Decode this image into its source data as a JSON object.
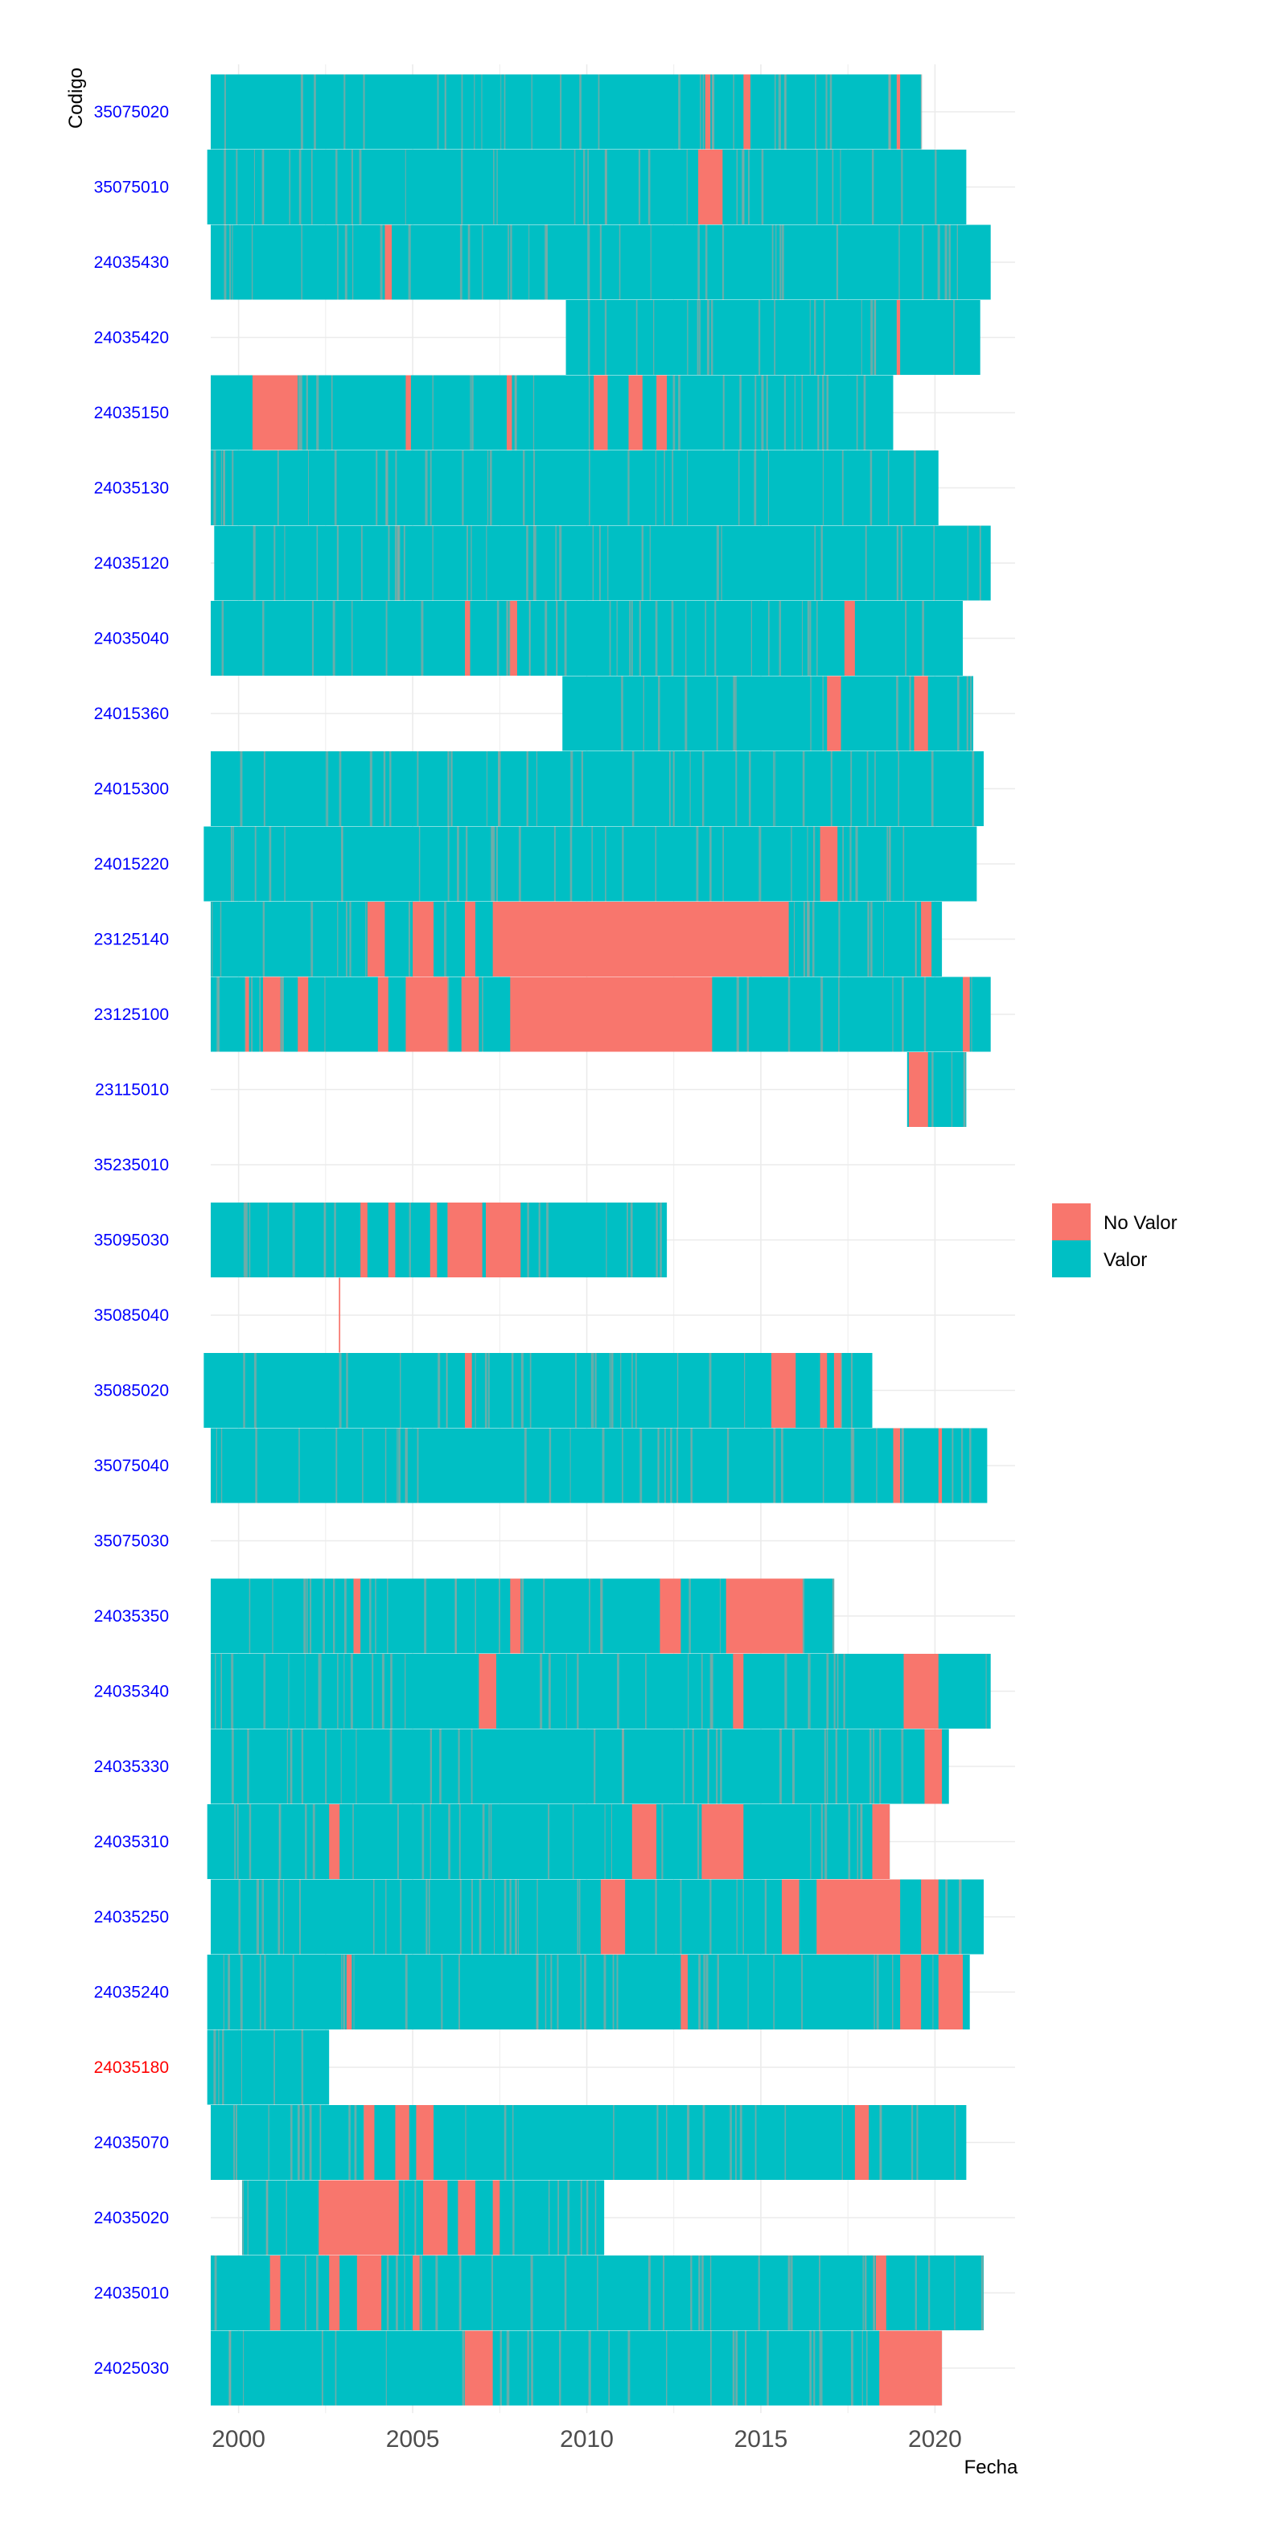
{
  "chart_data": {
    "type": "heatmap",
    "xlabel": "Fecha",
    "ylabel": "Codigo",
    "x_ticks": [
      2000,
      2005,
      2010,
      2015,
      2020
    ],
    "xlim": [
      1999.2,
      2022.3
    ],
    "grid": true,
    "legend_position": "right",
    "legend": [
      {
        "label": "No Valor",
        "color": "#F8766D"
      },
      {
        "label": "Valor",
        "color": "#00BFC4"
      }
    ],
    "colors": {
      "valor": "#00BFC4",
      "no_valor": "#F8766D",
      "tick_default": "#0000FF",
      "tick_highlight": "#FF0000"
    },
    "series": [
      {
        "code": "35075020",
        "tick_color": "#0000FF",
        "start": 1999.2,
        "end": 2019.6,
        "gaps": [
          [
            2013.4,
            2013.55
          ],
          [
            2014.5,
            2014.7
          ],
          [
            2018.9,
            2019.0
          ]
        ]
      },
      {
        "code": "35075010",
        "tick_color": "#0000FF",
        "start": 1999.1,
        "end": 2020.9,
        "gaps": [
          [
            2013.2,
            2013.9
          ]
        ]
      },
      {
        "code": "24035430",
        "tick_color": "#0000FF",
        "start": 1999.2,
        "end": 2021.6,
        "gaps": [
          [
            2004.2,
            2004.4
          ]
        ]
      },
      {
        "code": "24035420",
        "tick_color": "#0000FF",
        "start": 2009.4,
        "end": 2021.3,
        "gaps": [
          [
            2018.9,
            2019.0
          ]
        ]
      },
      {
        "code": "24035150",
        "tick_color": "#0000FF",
        "start": 1999.2,
        "end": 2018.8,
        "gaps": [
          [
            2000.4,
            2001.7
          ],
          [
            2004.8,
            2004.95
          ],
          [
            2007.7,
            2007.85
          ],
          [
            2010.2,
            2010.6
          ],
          [
            2011.2,
            2011.6
          ],
          [
            2012.0,
            2012.3
          ]
        ]
      },
      {
        "code": "24035130",
        "tick_color": "#0000FF",
        "start": 1999.2,
        "end": 2020.1,
        "gaps": []
      },
      {
        "code": "24035120",
        "tick_color": "#0000FF",
        "start": 1999.3,
        "end": 2021.6,
        "gaps": []
      },
      {
        "code": "24035040",
        "tick_color": "#0000FF",
        "start": 1999.2,
        "end": 2020.8,
        "gaps": [
          [
            2006.5,
            2006.65
          ],
          [
            2007.8,
            2008.0
          ],
          [
            2017.4,
            2017.7
          ]
        ]
      },
      {
        "code": "24015360",
        "tick_color": "#0000FF",
        "start": 2009.3,
        "end": 2021.1,
        "gaps": [
          [
            2016.9,
            2017.3
          ],
          [
            2019.4,
            2019.8
          ]
        ]
      },
      {
        "code": "24015300",
        "tick_color": "#0000FF",
        "start": 1999.2,
        "end": 2021.4,
        "gaps": []
      },
      {
        "code": "24015220",
        "tick_color": "#0000FF",
        "start": 1999.0,
        "end": 2021.2,
        "gaps": [
          [
            2016.7,
            2017.2
          ]
        ]
      },
      {
        "code": "23125140",
        "tick_color": "#0000FF",
        "start": 1999.2,
        "end": 2020.2,
        "gaps": [
          [
            2003.7,
            2004.2
          ],
          [
            2005.0,
            2005.6
          ],
          [
            2006.5,
            2006.8
          ],
          [
            2007.3,
            2015.8
          ],
          [
            2019.6,
            2019.9
          ]
        ]
      },
      {
        "code": "23125100",
        "tick_color": "#0000FF",
        "start": 1999.2,
        "end": 2021.6,
        "gaps": [
          [
            2000.2,
            2000.3
          ],
          [
            2000.7,
            2001.2
          ],
          [
            2001.7,
            2002.0
          ],
          [
            2004.0,
            2004.3
          ],
          [
            2004.8,
            2006.0
          ],
          [
            2006.4,
            2006.9
          ],
          [
            2007.8,
            2013.6
          ],
          [
            2020.8,
            2021.0
          ]
        ]
      },
      {
        "code": "23115010",
        "tick_color": "#0000FF",
        "start": 2019.2,
        "end": 2020.9,
        "gaps": [
          [
            2019.25,
            2019.8
          ]
        ]
      },
      {
        "code": "35235010",
        "tick_color": "#0000FF",
        "start": null,
        "end": null,
        "gaps": []
      },
      {
        "code": "35095030",
        "tick_color": "#0000FF",
        "start": 1999.2,
        "end": 2012.3,
        "gaps": [
          [
            2003.5,
            2003.7
          ],
          [
            2004.3,
            2004.5
          ],
          [
            2005.5,
            2005.7
          ],
          [
            2006.0,
            2007.0
          ],
          [
            2007.1,
            2008.1
          ]
        ]
      },
      {
        "code": "35085040",
        "tick_color": "#0000FF",
        "start": null,
        "end": null,
        "gaps": [
          [
            2002.88,
            2002.92
          ]
        ]
      },
      {
        "code": "35085020",
        "tick_color": "#0000FF",
        "start": 1999.0,
        "end": 2018.2,
        "gaps": [
          [
            2006.5,
            2006.7
          ],
          [
            2015.3,
            2016.0
          ],
          [
            2016.7,
            2016.9
          ],
          [
            2017.1,
            2017.3
          ]
        ]
      },
      {
        "code": "35075040",
        "tick_color": "#0000FF",
        "start": 1999.2,
        "end": 2021.5,
        "gaps": [
          [
            2018.8,
            2019.0
          ],
          [
            2020.1,
            2020.2
          ]
        ]
      },
      {
        "code": "35075030",
        "tick_color": "#0000FF",
        "start": null,
        "end": null,
        "gaps": []
      },
      {
        "code": "24035350",
        "tick_color": "#0000FF",
        "start": 1999.2,
        "end": 2017.1,
        "gaps": [
          [
            2003.3,
            2003.5
          ],
          [
            2007.8,
            2008.1
          ],
          [
            2012.1,
            2012.7
          ],
          [
            2014.0,
            2016.2
          ]
        ]
      },
      {
        "code": "24035340",
        "tick_color": "#0000FF",
        "start": 1999.2,
        "end": 2021.6,
        "gaps": [
          [
            2006.9,
            2007.4
          ],
          [
            2014.2,
            2014.5
          ],
          [
            2019.1,
            2020.1
          ]
        ]
      },
      {
        "code": "24035330",
        "tick_color": "#0000FF",
        "start": 1999.2,
        "end": 2020.4,
        "gaps": [
          [
            2019.7,
            2020.2
          ]
        ]
      },
      {
        "code": "24035310",
        "tick_color": "#0000FF",
        "start": 1999.1,
        "end": 2018.7,
        "gaps": [
          [
            2002.6,
            2002.9
          ],
          [
            2011.3,
            2012.0
          ],
          [
            2013.3,
            2014.5
          ],
          [
            2018.2,
            2018.7
          ]
        ]
      },
      {
        "code": "24035250",
        "tick_color": "#0000FF",
        "start": 1999.2,
        "end": 2021.4,
        "gaps": [
          [
            2010.4,
            2011.1
          ],
          [
            2015.6,
            2016.1
          ],
          [
            2016.6,
            2019.0
          ],
          [
            2019.6,
            2020.1
          ]
        ]
      },
      {
        "code": "24035240",
        "tick_color": "#0000FF",
        "start": 1999.1,
        "end": 2021.0,
        "gaps": [
          [
            2003.1,
            2003.25
          ],
          [
            2012.7,
            2012.9
          ],
          [
            2019.0,
            2019.6
          ],
          [
            2020.1,
            2020.8
          ]
        ]
      },
      {
        "code": "24035180",
        "tick_color": "#FF0000",
        "start": 1999.1,
        "end": 2002.6,
        "gaps": []
      },
      {
        "code": "24035070",
        "tick_color": "#0000FF",
        "start": 1999.2,
        "end": 2020.9,
        "gaps": [
          [
            2003.6,
            2003.9
          ],
          [
            2004.5,
            2004.9
          ],
          [
            2005.1,
            2005.6
          ],
          [
            2017.7,
            2018.1
          ]
        ]
      },
      {
        "code": "24035020",
        "tick_color": "#0000FF",
        "start": 2000.1,
        "end": 2010.5,
        "gaps": [
          [
            2002.3,
            2004.6
          ],
          [
            2005.3,
            2006.0
          ],
          [
            2006.3,
            2006.8
          ],
          [
            2007.3,
            2007.5
          ]
        ]
      },
      {
        "code": "24035010",
        "tick_color": "#0000FF",
        "start": 1999.2,
        "end": 2021.4,
        "gaps": [
          [
            2000.9,
            2001.2
          ],
          [
            2002.6,
            2002.9
          ],
          [
            2003.4,
            2004.1
          ],
          [
            2005.0,
            2005.2
          ],
          [
            2018.3,
            2018.6
          ]
        ]
      },
      {
        "code": "24025030",
        "tick_color": "#0000FF",
        "start": 1999.2,
        "end": 2020.2,
        "gaps": [
          [
            2006.5,
            2007.3
          ],
          [
            2018.4,
            2020.2
          ]
        ]
      }
    ]
  }
}
